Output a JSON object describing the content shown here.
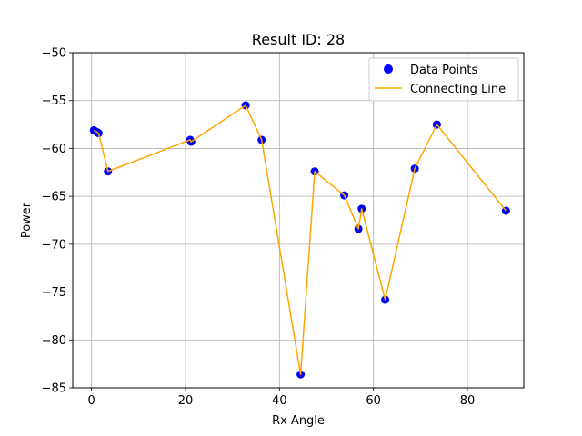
{
  "chart_data": {
    "type": "scatter",
    "title": "Result ID: 28",
    "xlabel": "Rx Angle",
    "ylabel": "Power",
    "xlim": [
      -4,
      92
    ],
    "ylim": [
      -85,
      -50
    ],
    "xticks": [
      0,
      20,
      40,
      60,
      80
    ],
    "yticks": [
      -85,
      -80,
      -75,
      -70,
      -65,
      -60,
      -55,
      -50
    ],
    "grid": true,
    "legend_position": "top-right",
    "series": [
      {
        "name": "Data Points",
        "kind": "scatter",
        "color": "#0000ff",
        "x": [
          0.5,
          1.2,
          1.5,
          3.5,
          21.0,
          21.2,
          32.8,
          36.2,
          44.5,
          47.5,
          53.8,
          56.8,
          57.5,
          62.5,
          68.8,
          73.5,
          88.2
        ],
        "y": [
          -58.1,
          -58.3,
          -58.4,
          -62.4,
          -59.1,
          -59.3,
          -55.5,
          -59.1,
          -83.6,
          -62.4,
          -64.9,
          -68.4,
          -66.3,
          -75.8,
          -62.1,
          -57.5,
          -66.5
        ]
      },
      {
        "name": "Connecting Line",
        "kind": "line",
        "color": "#ffa500",
        "x": [
          0.5,
          1.2,
          1.5,
          3.5,
          21.0,
          21.2,
          32.8,
          36.2,
          44.5,
          47.5,
          53.8,
          56.8,
          57.5,
          62.5,
          68.8,
          73.5,
          88.2
        ],
        "y": [
          -58.1,
          -58.3,
          -58.4,
          -62.4,
          -59.1,
          -59.3,
          -55.5,
          -59.1,
          -83.6,
          -62.4,
          -64.9,
          -68.4,
          -66.3,
          -75.8,
          -62.1,
          -57.5,
          -66.5
        ]
      }
    ]
  }
}
